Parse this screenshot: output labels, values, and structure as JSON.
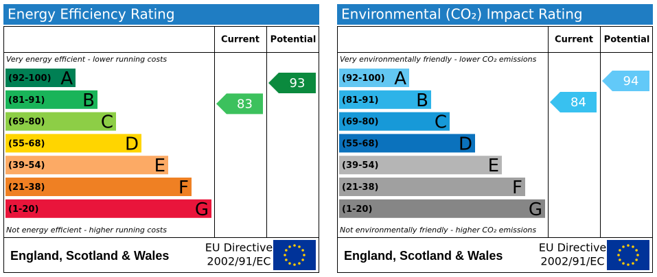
{
  "panels": [
    {
      "title": "Energy Efficiency Rating",
      "headers": [
        "Current",
        "Potential"
      ],
      "top_note": "Very energy efficient - lower running costs",
      "bottom_note": "Not energy efficient - higher running costs",
      "bands": [
        {
          "range": "(92-100)",
          "letter": "A",
          "color": "#008054"
        },
        {
          "range": "(81-91)",
          "letter": "B",
          "color": "#19b459"
        },
        {
          "range": "(69-80)",
          "letter": "C",
          "color": "#8dce46"
        },
        {
          "range": "(55-68)",
          "letter": "D",
          "color": "#ffd500"
        },
        {
          "range": "(39-54)",
          "letter": "E",
          "color": "#fcaa65"
        },
        {
          "range": "(21-38)",
          "letter": "F",
          "color": "#ef8023"
        },
        {
          "range": "(1-20)",
          "letter": "G",
          "color": "#e9153b"
        }
      ],
      "current": {
        "value": 83,
        "color": "#3cc15d"
      },
      "potential": {
        "value": 93,
        "color": "#0b8a3e"
      },
      "region": "England, Scotland & Wales",
      "directive": [
        "EU Directive",
        "2002/91/EC"
      ]
    },
    {
      "title": "Environmental (CO₂) Impact Rating",
      "headers": [
        "Current",
        "Potential"
      ],
      "top_note": "Very environmentally friendly - lower CO₂ emissions",
      "bottom_note": "Not environmentally friendly - higher CO₂ emissions",
      "bands": [
        {
          "range": "(92-100)",
          "letter": "A",
          "color": "#63c7f2"
        },
        {
          "range": "(81-91)",
          "letter": "B",
          "color": "#2db3e8"
        },
        {
          "range": "(69-80)",
          "letter": "C",
          "color": "#1799d8"
        },
        {
          "range": "(55-68)",
          "letter": "D",
          "color": "#0b72bd"
        },
        {
          "range": "(39-54)",
          "letter": "E",
          "color": "#b5b5b5"
        },
        {
          "range": "(21-38)",
          "letter": "F",
          "color": "#a0a0a0"
        },
        {
          "range": "(1-20)",
          "letter": "G",
          "color": "#868686"
        }
      ],
      "current": {
        "value": 84,
        "color": "#38c1f0"
      },
      "potential": {
        "value": 94,
        "color": "#62c9f8"
      },
      "region": "England, Scotland & Wales",
      "directive": [
        "EU Directive",
        "2002/91/EC"
      ]
    }
  ]
}
